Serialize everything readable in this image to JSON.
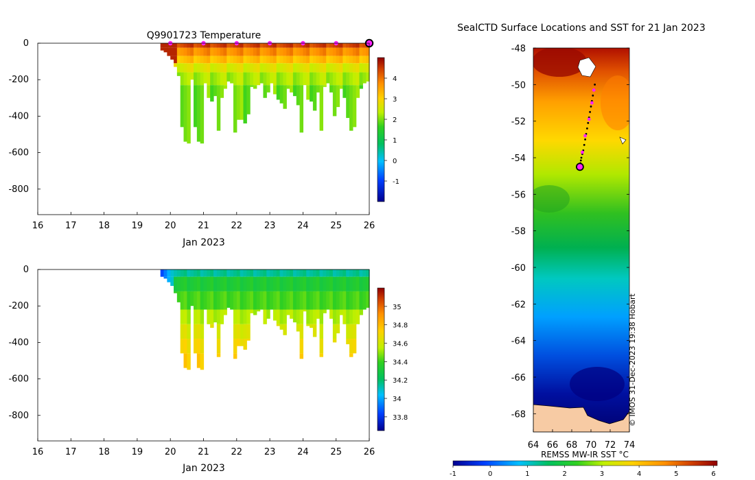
{
  "chart_data": [
    {
      "type": "heatmap",
      "id": "temperature-section",
      "title": "Q9901723  Temperature",
      "xlabel": "Jan 2023",
      "ylabel": "",
      "xlim": [
        16,
        26
      ],
      "ylim": [
        -940,
        0
      ],
      "x_ticks": [
        "16",
        "17",
        "18",
        "19",
        "20",
        "21",
        "22",
        "23",
        "24",
        "25",
        "26"
      ],
      "y_ticks": [
        "0",
        "-200",
        "-400",
        "-600",
        "-800"
      ],
      "profile_days": [
        19.75,
        19.85,
        19.95,
        20.05,
        20.15,
        20.25,
        20.35,
        20.45,
        20.55,
        20.65,
        20.75,
        20.85,
        20.95,
        21.05,
        21.15,
        21.25,
        21.35,
        21.45,
        21.55,
        21.65,
        21.75,
        21.85,
        21.95,
        22.05,
        22.15,
        22.25,
        22.35,
        22.45,
        22.55,
        22.65,
        22.75,
        22.85,
        22.95,
        23.05,
        23.15,
        23.25,
        23.35,
        23.45,
        23.55,
        23.65,
        23.75,
        23.85,
        23.95,
        24.05,
        24.15,
        24.25,
        24.35,
        24.45,
        24.55,
        24.65,
        24.75,
        24.85,
        24.95,
        25.05,
        25.15,
        25.25,
        25.35,
        25.45,
        25.55,
        25.65,
        25.75,
        25.85,
        25.95
      ],
      "max_depths": [
        40,
        50,
        70,
        90,
        130,
        180,
        460,
        540,
        550,
        200,
        460,
        540,
        550,
        220,
        300,
        320,
        290,
        480,
        300,
        250,
        210,
        220,
        490,
        420,
        420,
        440,
        390,
        240,
        250,
        230,
        220,
        300,
        270,
        220,
        280,
        310,
        330,
        360,
        250,
        270,
        290,
        340,
        490,
        230,
        310,
        320,
        370,
        270,
        480,
        240,
        220,
        270,
        400,
        350,
        250,
        300,
        410,
        480,
        460,
        300,
        250,
        220,
        210
      ],
      "colorbar": {
        "range": [
          -2,
          5
        ],
        "ticks": [
          "4",
          "3",
          "2",
          "1",
          "0",
          "-1"
        ]
      },
      "markers": {
        "days": [
          20,
          21,
          22,
          23,
          24,
          25
        ],
        "latest_day": 26,
        "color": "#ff22ff"
      }
    },
    {
      "type": "heatmap",
      "id": "salinity-section",
      "title": "",
      "xlabel": "Jan 2023",
      "ylabel": "",
      "xlim": [
        16,
        26
      ],
      "ylim": [
        -940,
        0
      ],
      "x_ticks": [
        "16",
        "17",
        "18",
        "19",
        "20",
        "21",
        "22",
        "23",
        "24",
        "25",
        "26"
      ],
      "y_ticks": [
        "0",
        "-200",
        "-400",
        "-600",
        "-800"
      ],
      "colorbar": {
        "range": [
          33.65,
          35.2
        ],
        "ticks": [
          "35",
          "34.8",
          "34.6",
          "34.4",
          "34.2",
          "34",
          "33.8"
        ]
      }
    },
    {
      "type": "heatmap",
      "id": "sst-map",
      "title": "SealCTD Surface Locations and SST for 21 Jan 2023",
      "xlabel": "",
      "ylabel": "",
      "xlim": [
        64,
        74
      ],
      "ylim": [
        -69,
        -48
      ],
      "x_ticks": [
        "64",
        "66",
        "68",
        "70",
        "72",
        "74"
      ],
      "y_ticks": [
        "-48",
        "-50",
        "-52",
        "-54",
        "-56",
        "-58",
        "-60",
        "-62",
        "-64",
        "-66",
        "-68"
      ],
      "track_lon": [
        70.4,
        70.3,
        70.2,
        70.1,
        70.0,
        69.9,
        69.8,
        69.7,
        69.6,
        69.5,
        69.4,
        69.3,
        69.2,
        69.1,
        69.0,
        68.95,
        68.9,
        68.85
      ],
      "track_lat": [
        -50.0,
        -50.3,
        -50.6,
        -50.9,
        -51.2,
        -51.5,
        -51.8,
        -52.1,
        -52.4,
        -52.7,
        -53.0,
        -53.3,
        -53.6,
        -53.8,
        -54.0,
        -54.15,
        -54.3,
        -54.5
      ],
      "daily_positions_lon": [
        70.3,
        70.1,
        69.8,
        69.4,
        69.1
      ],
      "daily_positions_lat": [
        -50.3,
        -51.0,
        -51.9,
        -52.8,
        -53.7
      ],
      "latest_position": {
        "lon": 68.85,
        "lat": -54.5
      },
      "colorbar": {
        "label": "REMSS MW-IR SST °C",
        "range": [
          -1,
          6.1
        ],
        "ticks": [
          "-1",
          "0",
          "1",
          "2",
          "3",
          "4",
          "5",
          "6"
        ]
      },
      "credit": "© IMOS 31-Dec-2023 19:38 Hobart"
    }
  ],
  "colors": {
    "land": "#f7cba4",
    "marker": "#ff22ff",
    "track": "#000000"
  }
}
